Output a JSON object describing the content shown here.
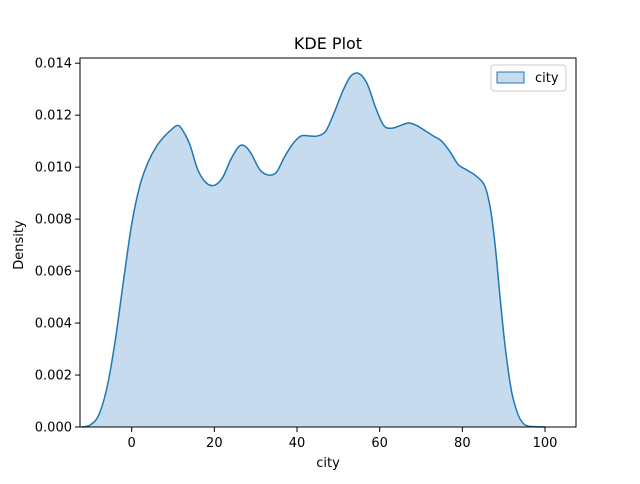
{
  "chart_data": {
    "type": "area",
    "title": "KDE Plot",
    "xlabel": "city",
    "ylabel": "Density",
    "xlim": [
      -12.5,
      107.5
    ],
    "ylim": [
      0,
      0.0142
    ],
    "xticks": [
      0,
      20,
      40,
      60,
      80,
      100
    ],
    "yticks": [
      0.0,
      0.002,
      0.004,
      0.006,
      0.008,
      0.01,
      0.012,
      0.014
    ],
    "xtick_labels": [
      "0",
      "20",
      "40",
      "60",
      "80",
      "100"
    ],
    "ytick_labels": [
      "0.000",
      "0.002",
      "0.004",
      "0.006",
      "0.008",
      "0.010",
      "0.012",
      "0.014"
    ],
    "grid": false,
    "legend": {
      "position": "top-right"
    },
    "colors": {
      "line": "#1f77b4",
      "fill": "#c6dbed",
      "axes": "#000000"
    },
    "series": [
      {
        "name": "city",
        "x": [
          -12,
          -10,
          -8,
          -6,
          -4,
          -2,
          0,
          2,
          4,
          6,
          8,
          10,
          11,
          12,
          14,
          16,
          18,
          20,
          22,
          24,
          26,
          27.5,
          29,
          31,
          33,
          35,
          37,
          39,
          41,
          43,
          45,
          47,
          49,
          51,
          53,
          55,
          57,
          59,
          61,
          63,
          65,
          67,
          69,
          71,
          73,
          75,
          77,
          79,
          81,
          83,
          85,
          86,
          87,
          88,
          89,
          90,
          91,
          92,
          93,
          94,
          95,
          96,
          98,
          100
        ],
        "values": [
          0.0,
          8e-05,
          0.00045,
          0.0015,
          0.0033,
          0.0056,
          0.0078,
          0.0093,
          0.0102,
          0.0108,
          0.0112,
          0.0115,
          0.0116,
          0.0115,
          0.0109,
          0.0099,
          0.0094,
          0.0093,
          0.0096,
          0.0103,
          0.0108,
          0.0108,
          0.0105,
          0.0099,
          0.0097,
          0.0098,
          0.0104,
          0.0109,
          0.0112,
          0.0112,
          0.0112,
          0.0114,
          0.0121,
          0.0129,
          0.0135,
          0.0136,
          0.0132,
          0.0123,
          0.0116,
          0.0115,
          0.0116,
          0.0117,
          0.0116,
          0.0114,
          0.0112,
          0.011,
          0.0106,
          0.0101,
          0.0099,
          0.0097,
          0.0094,
          0.009,
          0.0082,
          0.0069,
          0.0052,
          0.0036,
          0.0023,
          0.0013,
          0.0007,
          0.0003,
          0.0001,
          3e-05,
          1e-05,
          0.0
        ]
      }
    ]
  }
}
